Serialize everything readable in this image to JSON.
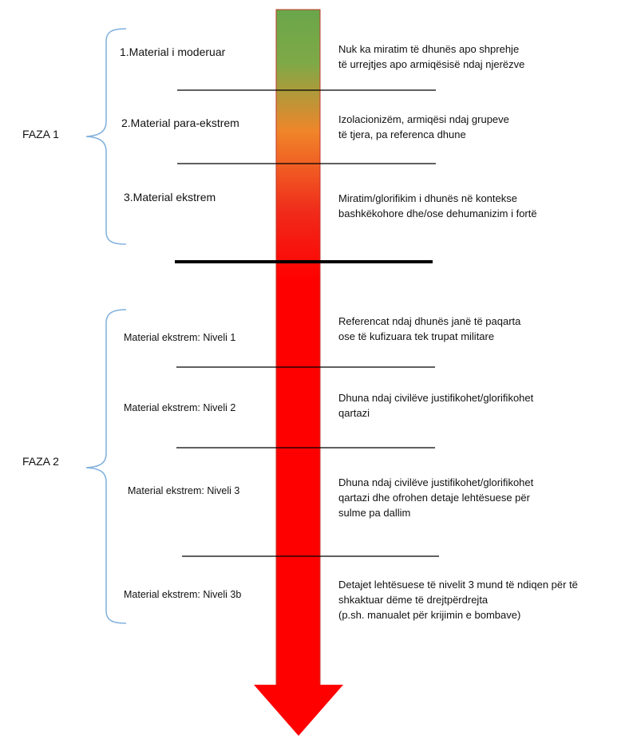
{
  "colors": {
    "arrow_top": "#6aa64a",
    "arrow_mid": "#f0852a",
    "arrow_bottom": "#ff0000",
    "bracket": "#7fb0dd",
    "divider": "#000000"
  },
  "phases": [
    {
      "label": "FAZA 1"
    },
    {
      "label": "FAZA 2"
    }
  ],
  "levels": [
    {
      "label": "1.Material i moderuar",
      "description": [
        "Nuk ka miratim të dhunës apo shprehje",
        "të urrejtjes apo armiqësisë ndaj njerëzve"
      ]
    },
    {
      "label": "2.Material para-ekstrem",
      "description": [
        "Izolacionizëm, armiqësi ndaj grupeve",
        "të tjera, pa referenca dhune"
      ]
    },
    {
      "label": "3.Material ekstrem",
      "description": [
        "Miratim/glorifikim i dhunës në kontekse",
        "bashkëkohore dhe/ose dehumanizim i fortë"
      ]
    },
    {
      "label": "Material ekstrem: Niveli 1",
      "description": [
        "Referencat ndaj dhunës janë të paqarta",
        "ose të kufizuara tek trupat militare"
      ]
    },
    {
      "label": "Material ekstrem: Niveli 2",
      "description": [
        "Dhuna ndaj civilëve justifikohet/glorifikohet",
        "qartazi"
      ]
    },
    {
      "label": "Material ekstrem: Niveli 3",
      "description": [
        "Dhuna ndaj civilëve justifikohet/glorifikohet",
        "qartazi dhe ofrohen detaje lehtësuese për",
        "sulme pa dallim"
      ]
    },
    {
      "label": "Material ekstrem: Niveli 3b",
      "description": [
        "Detajet lehtësuese të nivelit 3 mund të ndiqen për të",
        "shkaktuar dëme të drejtpërdrejta",
        "(p.sh. manualet për krijimin e bombave)"
      ]
    }
  ]
}
